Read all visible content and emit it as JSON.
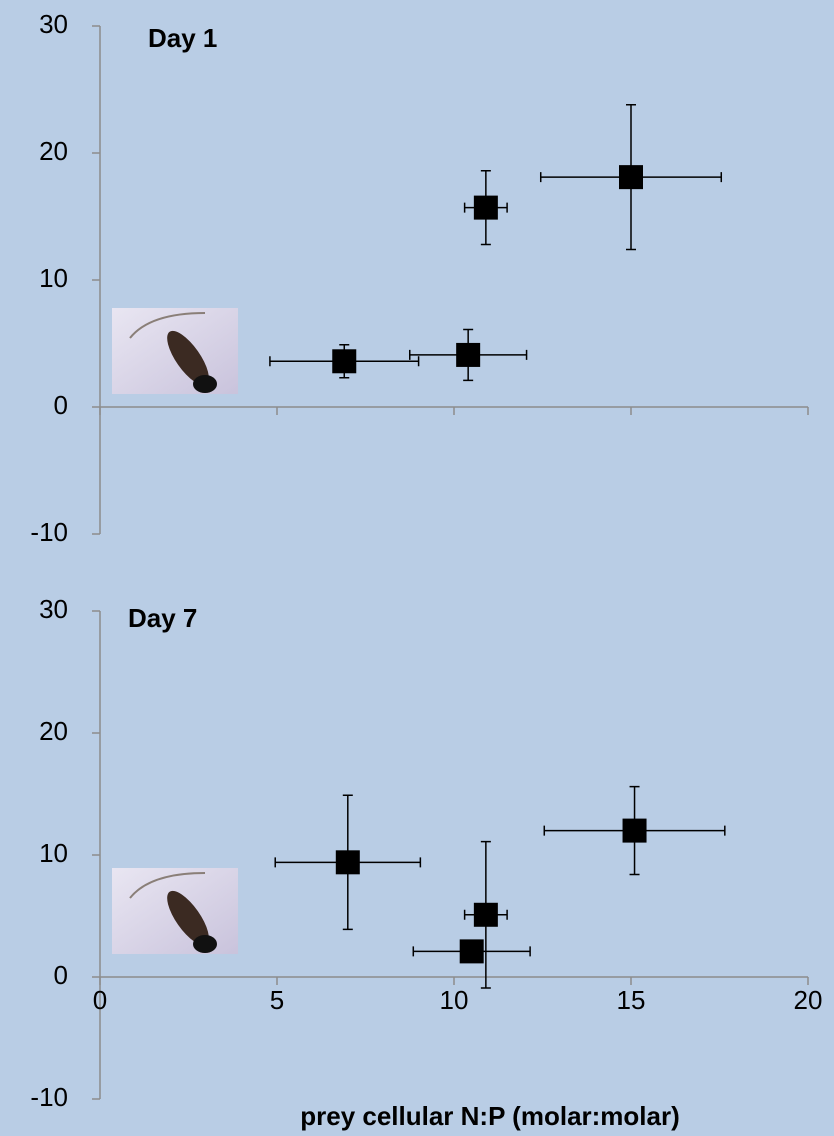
{
  "chart_data": [
    {
      "type": "scatter",
      "title": "Day  1",
      "color": "#000000",
      "x": [
        6.9,
        10.4,
        10.9,
        15.0
      ],
      "values": [
        3.6,
        4.1,
        15.7,
        18.1
      ],
      "xerr": [
        2.1,
        1.65,
        0.6,
        2.55
      ],
      "yerr": [
        1.3,
        2.0,
        2.9,
        5.7
      ],
      "xlim": [
        0,
        20
      ],
      "ylim": [
        -10,
        30
      ],
      "yticks": [
        -10,
        0,
        10,
        20,
        30
      ]
    },
    {
      "type": "scatter",
      "title": "Day  7",
      "color": "#000000",
      "x": [
        7.0,
        10.5,
        10.9,
        15.1
      ],
      "values": [
        9.4,
        2.1,
        5.1,
        12.0
      ],
      "xerr": [
        2.05,
        1.65,
        0.6,
        2.55
      ],
      "yerr": [
        5.5,
        0.5,
        6.0,
        3.6
      ],
      "xlim": [
        0,
        20
      ],
      "xticks": [
        0,
        5,
        10,
        15,
        20
      ],
      "ylim": [
        -10,
        30
      ],
      "yticks": [
        -10,
        0,
        10,
        20,
        30
      ],
      "xlabel": "prey cellular N:P (molar:molar)"
    }
  ]
}
